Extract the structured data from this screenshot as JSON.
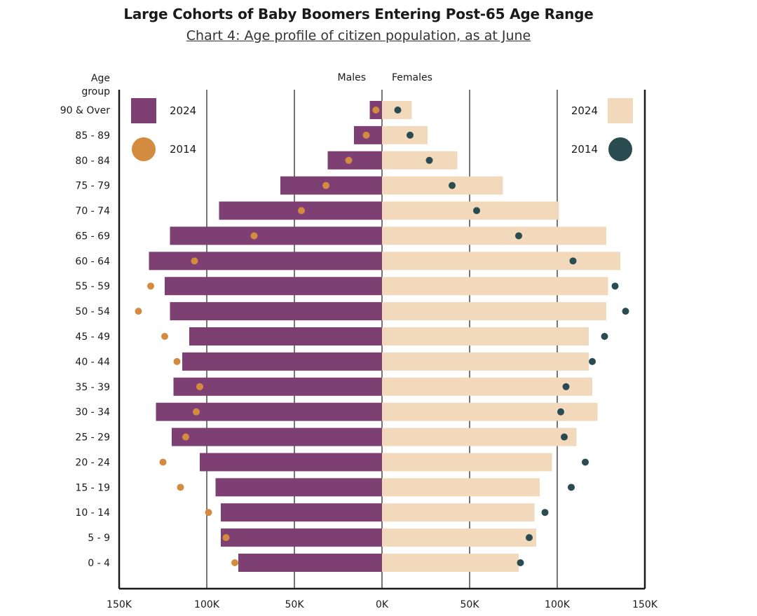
{
  "header": {
    "title": "Large Cohorts of Baby Boomers Entering Post-65 Age Range",
    "subtitle": "Chart 4: Age profile of citizen population, as at June"
  },
  "colors": {
    "male_2024": "#7e3f73",
    "female_2024": "#f3d9bc",
    "male_2014": "#d38c3f",
    "female_2014": "#2a4c50",
    "frame": "#1a1a1a"
  },
  "chart_data": {
    "type": "bar",
    "orientation": "horizontal-population-pyramid",
    "age_axis_label_line1": "Age",
    "age_axis_label_line2": "group",
    "males_label": "Males",
    "females_label": "Females",
    "categories": [
      "90 & Over",
      "85 - 89",
      "80 - 84",
      "75 - 79",
      "70 - 74",
      "65 - 69",
      "60 - 64",
      "55 - 59",
      "50 - 54",
      "45 - 49",
      "40 - 44",
      "35 - 39",
      "30 - 34",
      "25 - 29",
      "20 - 24",
      "15 - 19",
      "10 - 14",
      "5 - 9",
      "0 - 4"
    ],
    "x_ticks": [
      -150000,
      -100000,
      -50000,
      0,
      50000,
      100000,
      150000
    ],
    "x_tick_labels": [
      "150K",
      "100K",
      "50K",
      "0K",
      "50K",
      "100K",
      "150K"
    ],
    "xlim": [
      -150000,
      150000
    ],
    "series": [
      {
        "name": "2024",
        "side": "male",
        "mark": "bar",
        "values": [
          7000,
          16000,
          31000,
          58000,
          93000,
          121000,
          133000,
          124000,
          121000,
          110000,
          114000,
          119000,
          129000,
          120000,
          104000,
          95000,
          92000,
          92000,
          82000
        ]
      },
      {
        "name": "2014",
        "side": "male",
        "mark": "dot",
        "values": [
          3500,
          9000,
          19000,
          32000,
          46000,
          73000,
          107000,
          132000,
          139000,
          124000,
          117000,
          104000,
          106000,
          112000,
          125000,
          115000,
          99000,
          89000,
          84000
        ]
      },
      {
        "name": "2024",
        "side": "female",
        "mark": "bar",
        "values": [
          17000,
          26000,
          43000,
          69000,
          101000,
          128000,
          136000,
          129000,
          128000,
          118000,
          118000,
          120000,
          123000,
          111000,
          97000,
          90000,
          87000,
          88000,
          78000
        ]
      },
      {
        "name": "2014",
        "side": "female",
        "mark": "dot",
        "values": [
          9000,
          16000,
          27000,
          40000,
          54000,
          78000,
          109000,
          133000,
          139000,
          127000,
          120000,
          105000,
          102000,
          104000,
          116000,
          108000,
          93000,
          84000,
          79000
        ]
      }
    ],
    "legend": {
      "male": [
        {
          "label": "2024",
          "mark": "bar"
        },
        {
          "label": "2014",
          "mark": "dot"
        }
      ],
      "female": [
        {
          "label": "2024",
          "mark": "bar"
        },
        {
          "label": "2014",
          "mark": "dot"
        }
      ],
      "placement": "top-left and top-right inside plot"
    },
    "grid": "vertical lines at major ticks"
  }
}
